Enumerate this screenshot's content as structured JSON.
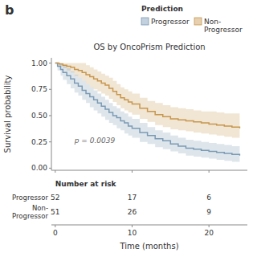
{
  "chart_data": {
    "type": "step",
    "title": "OS by OncoPrism Prediction",
    "panel_label": "b",
    "y_label": "Survival probability",
    "x_label": "Time (months)",
    "annotations": [
      {
        "text": "p = 0.0039",
        "x": 2.5,
        "y": 0.26
      }
    ],
    "xlim": [
      -0.5,
      25
    ],
    "xticks": [
      0,
      10,
      20
    ],
    "ylim": [
      -0.02,
      1.05
    ],
    "yticks": [
      {
        "value": 0.0,
        "label": "0.00"
      },
      {
        "value": 0.25,
        "label": "0.25"
      },
      {
        "value": 0.5,
        "label": "0.50"
      },
      {
        "value": 0.75,
        "label": "0.75"
      },
      {
        "value": 1.0,
        "label": "1.00"
      }
    ],
    "grid": false,
    "legend": "upper right",
    "legend_title": "Prediction",
    "series": [
      {
        "name": "Progressor",
        "color": "#7b9ab5",
        "x": [
          0,
          0.3,
          0.7,
          1.0,
          1.5,
          2.0,
          2.5,
          3.0,
          3.5,
          4.0,
          4.5,
          5.0,
          5.5,
          6.0,
          6.5,
          7.0,
          7.5,
          8.0,
          8.5,
          9.0,
          9.5,
          10.0,
          11.0,
          12.0,
          13.0,
          14.0,
          15.0,
          16.0,
          17.0,
          18.0,
          19.0,
          20.0,
          21.0,
          22.0,
          23.0,
          24.0
        ],
        "values": [
          1.0,
          0.97,
          0.94,
          0.91,
          0.88,
          0.85,
          0.81,
          0.78,
          0.74,
          0.71,
          0.68,
          0.65,
          0.62,
          0.59,
          0.56,
          0.53,
          0.5,
          0.48,
          0.45,
          0.43,
          0.4,
          0.38,
          0.34,
          0.31,
          0.28,
          0.26,
          0.23,
          0.21,
          0.19,
          0.18,
          0.17,
          0.16,
          0.15,
          0.14,
          0.13,
          0.12
        ],
        "upper": [
          1.0,
          1.0,
          1.0,
          0.98,
          0.95,
          0.92,
          0.89,
          0.86,
          0.83,
          0.8,
          0.77,
          0.74,
          0.71,
          0.68,
          0.65,
          0.62,
          0.59,
          0.57,
          0.54,
          0.52,
          0.49,
          0.47,
          0.43,
          0.39,
          0.36,
          0.34,
          0.31,
          0.29,
          0.27,
          0.26,
          0.25,
          0.24,
          0.23,
          0.22,
          0.21,
          0.2
        ],
        "lower": [
          1.0,
          0.93,
          0.88,
          0.84,
          0.8,
          0.76,
          0.72,
          0.69,
          0.65,
          0.62,
          0.58,
          0.55,
          0.52,
          0.49,
          0.46,
          0.43,
          0.41,
          0.38,
          0.36,
          0.33,
          0.31,
          0.29,
          0.25,
          0.23,
          0.2,
          0.18,
          0.16,
          0.14,
          0.12,
          0.11,
          0.1,
          0.09,
          0.08,
          0.07,
          0.06,
          0.05
        ]
      },
      {
        "name": "Non-\nProgressor",
        "color": "#c8974e",
        "x": [
          0,
          0.5,
          1.0,
          1.5,
          2.0,
          2.5,
          3.0,
          3.5,
          4.0,
          4.5,
          5.0,
          5.5,
          6.0,
          6.5,
          7.0,
          7.5,
          8.0,
          8.5,
          9.0,
          9.5,
          10.0,
          11.0,
          12.0,
          13.0,
          14.0,
          15.0,
          16.0,
          17.0,
          18.0,
          19.0,
          20.0,
          21.0,
          22.0,
          23.0,
          24.0
        ],
        "values": [
          1.0,
          0.99,
          0.98,
          0.97,
          0.96,
          0.94,
          0.93,
          0.91,
          0.89,
          0.87,
          0.85,
          0.83,
          0.81,
          0.79,
          0.76,
          0.73,
          0.7,
          0.67,
          0.65,
          0.63,
          0.61,
          0.57,
          0.54,
          0.51,
          0.49,
          0.47,
          0.46,
          0.45,
          0.44,
          0.43,
          0.42,
          0.41,
          0.4,
          0.39,
          0.38
        ],
        "upper": [
          1.0,
          1.0,
          1.0,
          1.0,
          1.0,
          1.0,
          1.0,
          1.0,
          0.98,
          0.96,
          0.94,
          0.92,
          0.9,
          0.88,
          0.86,
          0.83,
          0.8,
          0.77,
          0.75,
          0.73,
          0.71,
          0.67,
          0.64,
          0.62,
          0.6,
          0.58,
          0.57,
          0.56,
          0.55,
          0.54,
          0.54,
          0.53,
          0.52,
          0.52,
          0.51
        ],
        "lower": [
          1.0,
          0.97,
          0.95,
          0.93,
          0.91,
          0.88,
          0.86,
          0.83,
          0.8,
          0.77,
          0.75,
          0.73,
          0.71,
          0.69,
          0.66,
          0.63,
          0.6,
          0.57,
          0.55,
          0.53,
          0.51,
          0.47,
          0.44,
          0.41,
          0.39,
          0.37,
          0.36,
          0.35,
          0.34,
          0.33,
          0.32,
          0.31,
          0.3,
          0.29,
          0.28
        ]
      }
    ],
    "number_at_risk": {
      "title": "Number at risk",
      "x": [
        0,
        10,
        20
      ],
      "series": [
        {
          "name": "Progressor",
          "values": [
            52,
            17,
            6
          ]
        },
        {
          "name": "Non-\nProgressor",
          "values": [
            51,
            26,
            9
          ]
        }
      ]
    }
  }
}
